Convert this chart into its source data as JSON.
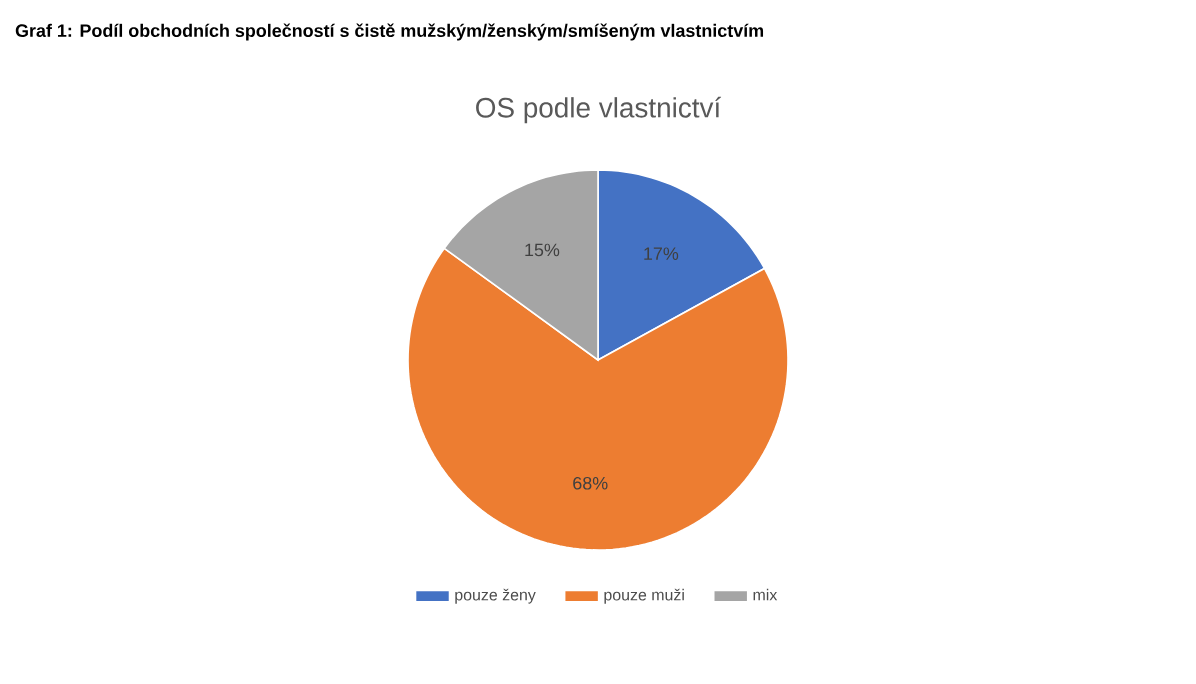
{
  "chart_data": {
    "type": "pie",
    "title": "Graf 1: Podíl obchodních společností s čistě mužským/ženským/smíšeným vlastnictvím",
    "subtitle": "OS podle vlastnictví",
    "categories": [
      "pouze ženy",
      "pouze muži",
      "mix"
    ],
    "values": [
      17,
      68,
      15
    ],
    "value_labels": [
      "17%",
      "68%",
      "15%"
    ],
    "colors": [
      "#4472c4",
      "#ed7d31",
      "#a5a5a5"
    ],
    "legend": "bottom"
  }
}
